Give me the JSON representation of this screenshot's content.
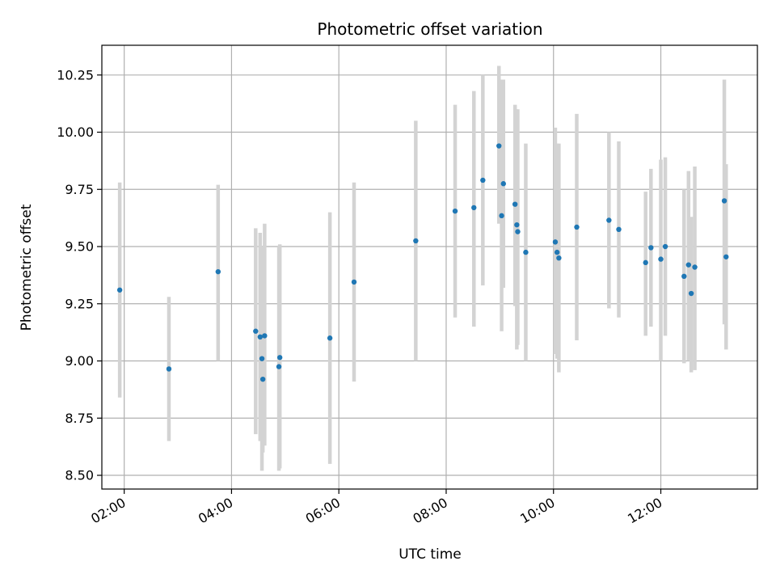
{
  "chart_data": {
    "type": "scatter",
    "title": "Photometric offset variation",
    "xlabel": "UTC time",
    "ylabel": "Photometric offset",
    "x_units": "hours (UTC)",
    "xlim": [
      "01:35",
      "13:48"
    ],
    "ylim": [
      8.44,
      10.38
    ],
    "x_ticks": [
      {
        "value": "02:00",
        "label": "02:00"
      },
      {
        "value": "04:00",
        "label": "04:00"
      },
      {
        "value": "06:00",
        "label": "06:00"
      },
      {
        "value": "08:00",
        "label": "08:00"
      },
      {
        "value": "10:00",
        "label": "10:00"
      },
      {
        "value": "12:00",
        "label": "12:00"
      }
    ],
    "y_ticks": [
      {
        "value": 8.5,
        "label": "8.50"
      },
      {
        "value": 8.75,
        "label": "8.75"
      },
      {
        "value": 9.0,
        "label": "9.00"
      },
      {
        "value": 9.25,
        "label": "9.25"
      },
      {
        "value": 9.5,
        "label": "9.50"
      },
      {
        "value": 9.75,
        "label": "9.75"
      },
      {
        "value": 10.0,
        "label": "10.00"
      },
      {
        "value": 10.25,
        "label": "10.25"
      }
    ],
    "grid": true,
    "marker_color": "#1f77b4",
    "errorbar_color": "#d3d3d3",
    "points": [
      {
        "x": "01:55",
        "y": 9.31,
        "lo": 8.84,
        "hi": 9.78
      },
      {
        "x": "02:50",
        "y": 8.965,
        "lo": 8.65,
        "hi": 9.28
      },
      {
        "x": "03:45",
        "y": 9.39,
        "lo": 9.0,
        "hi": 9.77
      },
      {
        "x": "04:27",
        "y": 9.13,
        "lo": 8.68,
        "hi": 9.58
      },
      {
        "x": "04:32",
        "y": 9.105,
        "lo": 8.65,
        "hi": 9.56
      },
      {
        "x": "04:34",
        "y": 9.01,
        "lo": 8.52,
        "hi": 9.5
      },
      {
        "x": "04:35",
        "y": 8.92,
        "lo": 8.6,
        "hi": 9.5
      },
      {
        "x": "04:37",
        "y": 9.11,
        "lo": 8.63,
        "hi": 9.6
      },
      {
        "x": "04:53",
        "y": 8.975,
        "lo": 8.52,
        "hi": 9.5
      },
      {
        "x": "04:54",
        "y": 9.015,
        "lo": 8.53,
        "hi": 9.51
      },
      {
        "x": "05:50",
        "y": 9.1,
        "lo": 8.55,
        "hi": 9.65
      },
      {
        "x": "06:17",
        "y": 9.345,
        "lo": 8.91,
        "hi": 9.78
      },
      {
        "x": "07:26",
        "y": 9.525,
        "lo": 9.0,
        "hi": 10.05
      },
      {
        "x": "08:10",
        "y": 9.655,
        "lo": 9.19,
        "hi": 10.12
      },
      {
        "x": "08:31",
        "y": 9.67,
        "lo": 9.15,
        "hi": 10.18
      },
      {
        "x": "08:41",
        "y": 9.79,
        "lo": 9.33,
        "hi": 10.25
      },
      {
        "x": "08:59",
        "y": 9.94,
        "lo": 9.6,
        "hi": 10.29
      },
      {
        "x": "09:02",
        "y": 9.635,
        "lo": 9.13,
        "hi": 10.23
      },
      {
        "x": "09:04",
        "y": 9.775,
        "lo": 9.32,
        "hi": 10.23
      },
      {
        "x": "09:17",
        "y": 9.685,
        "lo": 9.24,
        "hi": 10.12
      },
      {
        "x": "09:19",
        "y": 9.595,
        "lo": 9.05,
        "hi": 10.1
      },
      {
        "x": "09:20",
        "y": 9.565,
        "lo": 9.07,
        "hi": 10.1
      },
      {
        "x": "09:29",
        "y": 9.475,
        "lo": 9.0,
        "hi": 9.95
      },
      {
        "x": "10:02",
        "y": 9.52,
        "lo": 9.03,
        "hi": 10.02
      },
      {
        "x": "10:04",
        "y": 9.475,
        "lo": 9.01,
        "hi": 9.95
      },
      {
        "x": "10:06",
        "y": 9.45,
        "lo": 8.95,
        "hi": 9.95
      },
      {
        "x": "10:26",
        "y": 9.585,
        "lo": 9.09,
        "hi": 10.08
      },
      {
        "x": "11:02",
        "y": 9.615,
        "lo": 9.23,
        "hi": 10.0
      },
      {
        "x": "11:13",
        "y": 9.575,
        "lo": 9.19,
        "hi": 9.96
      },
      {
        "x": "11:43",
        "y": 9.43,
        "lo": 9.11,
        "hi": 9.74
      },
      {
        "x": "11:49",
        "y": 9.495,
        "lo": 9.15,
        "hi": 9.84
      },
      {
        "x": "12:00",
        "y": 9.445,
        "lo": 9.0,
        "hi": 9.88
      },
      {
        "x": "12:05",
        "y": 9.5,
        "lo": 9.11,
        "hi": 9.89
      },
      {
        "x": "12:26",
        "y": 9.37,
        "lo": 8.99,
        "hi": 9.75
      },
      {
        "x": "12:31",
        "y": 9.42,
        "lo": 9.0,
        "hi": 9.83
      },
      {
        "x": "12:34",
        "y": 9.295,
        "lo": 8.95,
        "hi": 9.63
      },
      {
        "x": "12:38",
        "y": 9.41,
        "lo": 8.96,
        "hi": 9.85
      },
      {
        "x": "13:11",
        "y": 9.7,
        "lo": 9.16,
        "hi": 10.23
      },
      {
        "x": "13:13",
        "y": 9.455,
        "lo": 9.05,
        "hi": 9.86
      }
    ]
  }
}
